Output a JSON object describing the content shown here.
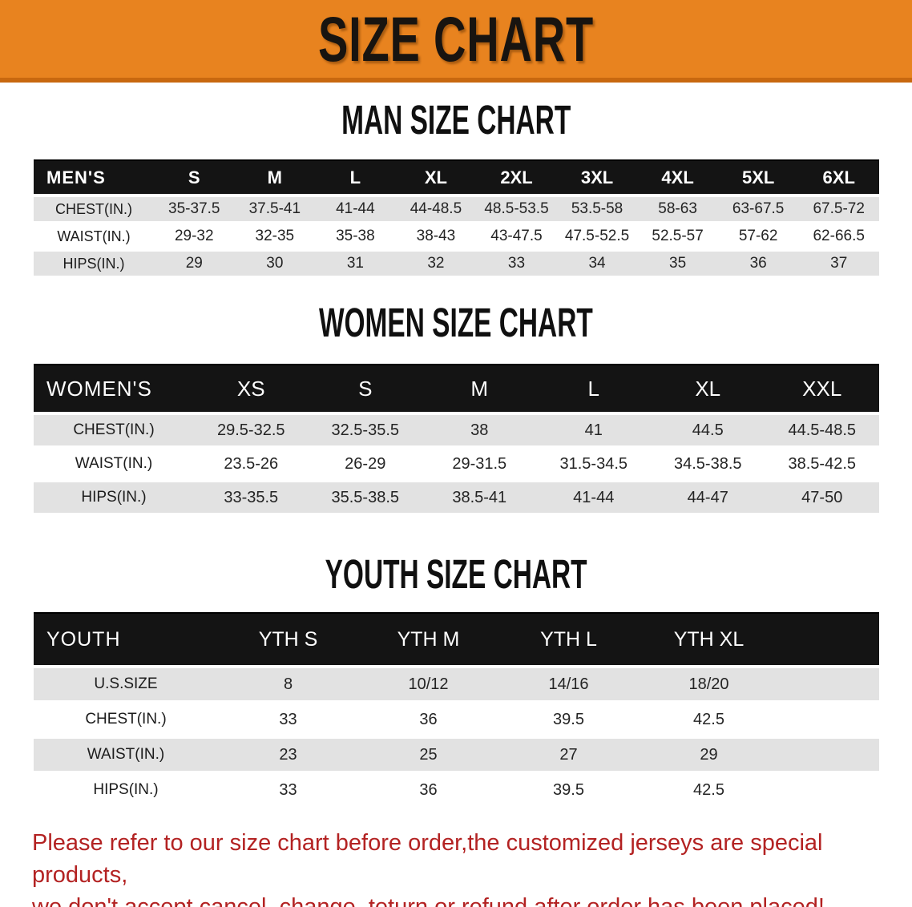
{
  "banner": {
    "title": "SIZE CHART",
    "bg_color": "#E8831F",
    "text_color": "#181410"
  },
  "sections": {
    "men": {
      "heading": "MAN SIZE CHART",
      "table": {
        "header_label": "MEN'S",
        "sizes": [
          "S",
          "M",
          "L",
          "XL",
          "2XL",
          "3XL",
          "4XL",
          "5XL",
          "6XL"
        ],
        "rows": [
          {
            "label": "CHEST(IN.)",
            "values": [
              "35-37.5",
              "37.5-41",
              "41-44",
              "44-48.5",
              "48.5-53.5",
              "53.5-58",
              "58-63",
              "63-67.5",
              "67.5-72"
            ]
          },
          {
            "label": "WAIST(IN.)",
            "values": [
              "29-32",
              "32-35",
              "35-38",
              "38-43",
              "43-47.5",
              "47.5-52.5",
              "52.5-57",
              "57-62",
              "62-66.5"
            ]
          },
          {
            "label": "HIPS(IN.)",
            "values": [
              "29",
              "30",
              "31",
              "32",
              "33",
              "34",
              "35",
              "36",
              "37"
            ]
          }
        ]
      }
    },
    "women": {
      "heading": "WOMEN SIZE CHART",
      "table": {
        "header_label": "WOMEN'S",
        "sizes": [
          "XS",
          "S",
          "M",
          "L",
          "XL",
          "XXL"
        ],
        "rows": [
          {
            "label": "CHEST(IN.)",
            "values": [
              "29.5-32.5",
              "32.5-35.5",
              "38",
              "41",
              "44.5",
              "44.5-48.5"
            ]
          },
          {
            "label": "WAIST(IN.)",
            "values": [
              "23.5-26",
              "26-29",
              "29-31.5",
              "31.5-34.5",
              "34.5-38.5",
              "38.5-42.5"
            ]
          },
          {
            "label": "HIPS(IN.)",
            "values": [
              "33-35.5",
              "35.5-38.5",
              "38.5-41",
              "41-44",
              "44-47",
              "47-50"
            ]
          }
        ]
      }
    },
    "youth": {
      "heading": "YOUTH SIZE CHART",
      "table": {
        "header_label": "YOUTH",
        "sizes": [
          "YTH S",
          "YTH M",
          "YTH L",
          "YTH XL"
        ],
        "rows": [
          {
            "label": "U.S.SIZE",
            "values": [
              "8",
              "10/12",
              "14/16",
              "18/20"
            ]
          },
          {
            "label": "CHEST(IN.)",
            "values": [
              "33",
              "36",
              "39.5",
              "42.5"
            ]
          },
          {
            "label": "WAIST(IN.)",
            "values": [
              "23",
              "25",
              "27",
              "29"
            ]
          },
          {
            "label": "HIPS(IN.)",
            "values": [
              "33",
              "36",
              "39.5",
              "42.5"
            ]
          }
        ]
      }
    }
  },
  "disclaimer": {
    "line1": "Please refer to our size chart before order,the customized jerseys are special products,",
    "line2": "we don't accept cancel, change, teturn or refund after order has been placed!",
    "color": "#B32222"
  },
  "colors": {
    "banner_orange": "#E8831F",
    "banner_border": "#C8680F",
    "table_header_black": "#141414",
    "row_stripe_gray": "#E2E2E2",
    "disclaimer_red": "#B32222"
  }
}
